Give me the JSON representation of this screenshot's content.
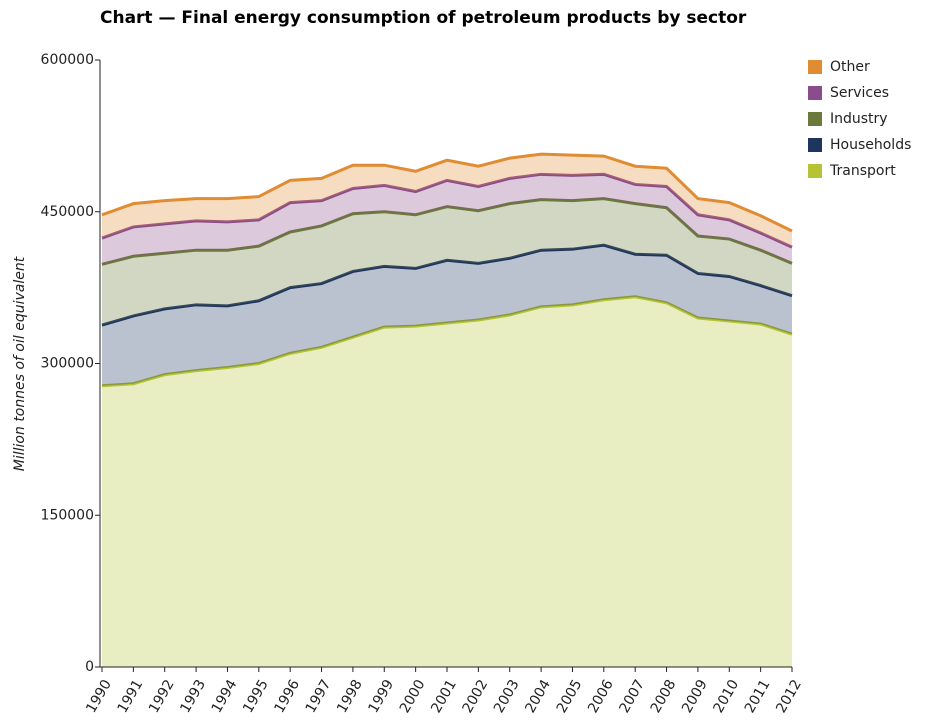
{
  "chart_data": {
    "type": "stacked-area",
    "title": "Chart — Final energy consumption of petroleum products by sector",
    "ylabel": "Million tonnes of oil equivalent",
    "categories": [
      "1990",
      "1991",
      "1992",
      "1993",
      "1994",
      "1995",
      "1996",
      "1997",
      "1998",
      "1999",
      "2000",
      "2001",
      "2002",
      "2003",
      "2004",
      "2005",
      "2006",
      "2007",
      "2008",
      "2009",
      "2010",
      "2011",
      "2012"
    ],
    "ylim": [
      0,
      600000
    ],
    "yticks": [
      0,
      150000,
      300000,
      450000,
      600000
    ],
    "legend": "right",
    "series": [
      {
        "name": "Transport",
        "color": "#b5c334",
        "values": [
          278000,
          280000,
          289000,
          293000,
          296000,
          300000,
          310000,
          316000,
          326000,
          336000,
          337000,
          340000,
          343000,
          348000,
          356000,
          358000,
          363000,
          366000,
          360000,
          345000,
          342000,
          339000,
          329000
        ]
      },
      {
        "name": "Households",
        "color": "#1f3560",
        "values": [
          60000,
          67000,
          65000,
          65000,
          61000,
          62000,
          65000,
          63000,
          65000,
          60000,
          57000,
          62000,
          56000,
          56000,
          56000,
          55000,
          54000,
          42000,
          47000,
          44000,
          44000,
          38000,
          38000
        ]
      },
      {
        "name": "Industry",
        "color": "#6b7a3a",
        "values": [
          60000,
          59000,
          55000,
          54000,
          55000,
          54000,
          55000,
          57000,
          57000,
          54000,
          53000,
          53000,
          52000,
          54000,
          50000,
          48000,
          46000,
          50000,
          47000,
          37000,
          37000,
          35000,
          32000
        ]
      },
      {
        "name": "Services",
        "color": "#8a4c8c",
        "values": [
          26000,
          29000,
          29000,
          29000,
          28000,
          26000,
          29000,
          25000,
          25000,
          26000,
          23000,
          26000,
          24000,
          25000,
          25000,
          25000,
          24000,
          19000,
          21000,
          21000,
          19000,
          17000,
          16000
        ]
      },
      {
        "name": "Other",
        "color": "#e08c33",
        "values": [
          23000,
          23000,
          23000,
          22000,
          23000,
          23000,
          22000,
          22000,
          23000,
          20000,
          20000,
          20000,
          20000,
          20000,
          20000,
          20000,
          18000,
          18000,
          18000,
          16000,
          17000,
          17000,
          16000
        ]
      }
    ]
  }
}
